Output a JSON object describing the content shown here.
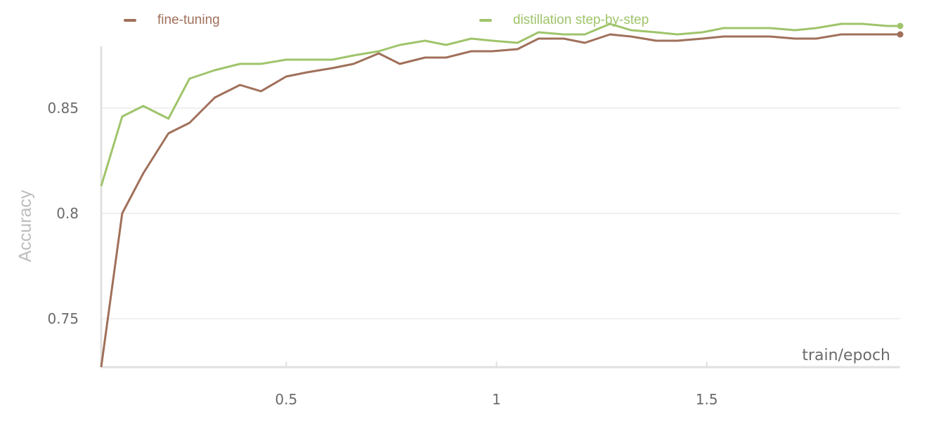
{
  "chart_data": {
    "type": "line",
    "xlabel": "train/epoch",
    "ylabel": "Accuracy",
    "xlim": [
      0.06,
      1.96
    ],
    "ylim": [
      0.727,
      0.888
    ],
    "x_ticks": [
      0.5,
      1,
      1.5
    ],
    "x_tick_labels": [
      "0.5",
      "1",
      "1.5"
    ],
    "y_ticks": [
      0.75,
      0.8,
      0.85
    ],
    "y_tick_labels": [
      "0.75",
      "0.8",
      "0.85"
    ],
    "grid": "horizontal",
    "legend_position": "top",
    "series": [
      {
        "name": "fine-tuning",
        "color": "#a0705a",
        "x": [
          0.06,
          0.11,
          0.16,
          0.22,
          0.27,
          0.33,
          0.39,
          0.44,
          0.5,
          0.55,
          0.61,
          0.66,
          0.72,
          0.77,
          0.83,
          0.88,
          0.94,
          0.99,
          1.05,
          1.1,
          1.16,
          1.21,
          1.27,
          1.32,
          1.38,
          1.43,
          1.49,
          1.54,
          1.6,
          1.65,
          1.71,
          1.76,
          1.82,
          1.87,
          1.93,
          1.96
        ],
        "values": [
          0.727,
          0.8,
          0.819,
          0.838,
          0.843,
          0.855,
          0.861,
          0.858,
          0.865,
          0.867,
          0.869,
          0.871,
          0.876,
          0.871,
          0.874,
          0.874,
          0.877,
          0.877,
          0.878,
          0.883,
          0.883,
          0.881,
          0.885,
          0.884,
          0.882,
          0.882,
          0.883,
          0.884,
          0.884,
          0.884,
          0.883,
          0.883,
          0.885,
          0.885,
          0.885,
          0.885
        ]
      },
      {
        "name": "distillation step-by-step",
        "color": "#9fc46b",
        "x": [
          0.06,
          0.11,
          0.16,
          0.22,
          0.27,
          0.33,
          0.39,
          0.44,
          0.5,
          0.55,
          0.61,
          0.66,
          0.72,
          0.77,
          0.83,
          0.88,
          0.94,
          0.99,
          1.05,
          1.1,
          1.16,
          1.21,
          1.27,
          1.32,
          1.38,
          1.43,
          1.49,
          1.54,
          1.6,
          1.65,
          1.71,
          1.76,
          1.82,
          1.87,
          1.93,
          1.96
        ],
        "values": [
          0.813,
          0.846,
          0.851,
          0.845,
          0.864,
          0.868,
          0.871,
          0.871,
          0.873,
          0.873,
          0.873,
          0.875,
          0.877,
          0.88,
          0.882,
          0.88,
          0.883,
          0.882,
          0.881,
          0.886,
          0.885,
          0.885,
          0.89,
          0.887,
          0.886,
          0.885,
          0.886,
          0.888,
          0.888,
          0.888,
          0.887,
          0.888,
          0.89,
          0.89,
          0.889,
          0.889
        ]
      }
    ]
  }
}
